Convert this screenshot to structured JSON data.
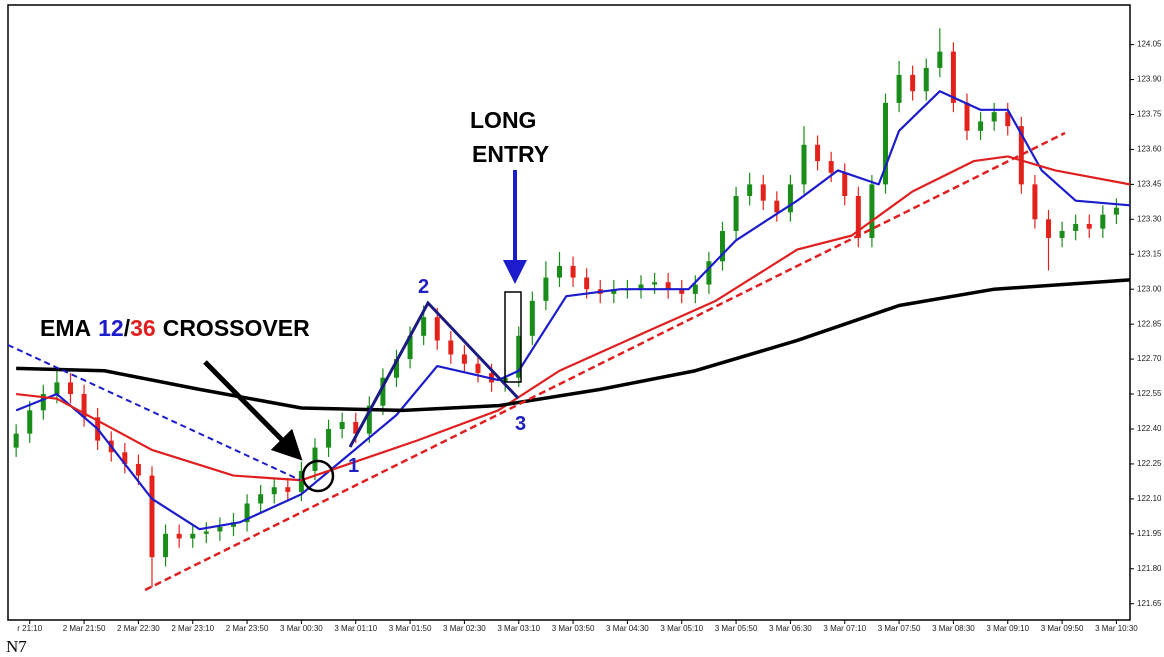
{
  "chart_data": {
    "type": "candlestick",
    "up_color": "#1a8c1a",
    "down_color": "#e3231b",
    "open": [
      122.32,
      122.38,
      122.48,
      122.55,
      122.6,
      122.55,
      122.45,
      122.35,
      122.3,
      122.25,
      122.2,
      121.85,
      121.95,
      121.93,
      121.95,
      121.96,
      121.98,
      122.0,
      122.08,
      122.12,
      122.15,
      122.13,
      122.22,
      122.32,
      122.4,
      122.43,
      122.38,
      122.5,
      122.62,
      122.7,
      122.8,
      122.88,
      122.78,
      122.72,
      122.68,
      122.64,
      122.6,
      122.62,
      122.8,
      122.95,
      123.05,
      123.1,
      123.05,
      123.0,
      122.98,
      123.0,
      123.0,
      123.02,
      123.03,
      123.0,
      122.98,
      123.02,
      123.12,
      123.25,
      123.4,
      123.45,
      123.38,
      123.33,
      123.45,
      123.62,
      123.55,
      123.5,
      123.4,
      123.22,
      123.45,
      123.8,
      123.92,
      123.85,
      123.95,
      124.02,
      123.8,
      123.68,
      123.72,
      123.76,
      123.7,
      123.45,
      123.3,
      123.22,
      123.25,
      123.28,
      123.26,
      123.32
    ],
    "high": [
      122.42,
      122.52,
      122.59,
      122.66,
      122.64,
      122.59,
      122.49,
      122.39,
      122.34,
      122.29,
      122.24,
      121.99,
      121.99,
      121.99,
      122.0,
      122.02,
      122.04,
      122.12,
      122.16,
      122.19,
      122.19,
      122.26,
      122.36,
      122.44,
      122.47,
      122.47,
      122.54,
      122.66,
      122.74,
      122.84,
      122.93,
      122.92,
      122.82,
      122.76,
      122.72,
      122.68,
      122.66,
      122.84,
      122.99,
      123.12,
      123.16,
      123.14,
      123.09,
      123.04,
      123.04,
      123.04,
      123.06,
      123.07,
      123.07,
      123.04,
      123.06,
      123.16,
      123.29,
      123.44,
      123.5,
      123.49,
      123.42,
      123.49,
      123.7,
      123.66,
      123.59,
      123.54,
      123.44,
      123.49,
      123.84,
      123.98,
      123.96,
      123.99,
      124.12,
      124.06,
      123.84,
      123.76,
      123.8,
      123.8,
      123.74,
      123.49,
      123.34,
      123.29,
      123.32,
      123.32,
      123.36,
      123.39
    ],
    "low": [
      122.28,
      122.34,
      122.44,
      122.51,
      122.51,
      122.41,
      122.31,
      122.26,
      122.21,
      122.16,
      121.72,
      121.81,
      121.89,
      121.89,
      121.91,
      121.92,
      121.94,
      121.96,
      122.04,
      122.08,
      122.09,
      122.09,
      122.18,
      122.28,
      122.36,
      122.34,
      122.34,
      122.46,
      122.58,
      122.66,
      122.76,
      122.74,
      122.68,
      122.64,
      122.6,
      122.56,
      122.56,
      122.58,
      122.76,
      122.91,
      123.01,
      123.01,
      122.96,
      122.94,
      122.94,
      122.96,
      122.96,
      122.98,
      122.96,
      122.94,
      122.94,
      122.98,
      123.08,
      123.21,
      123.36,
      123.34,
      123.29,
      123.29,
      123.41,
      123.51,
      123.46,
      123.36,
      123.18,
      123.18,
      123.41,
      123.76,
      123.81,
      123.81,
      123.91,
      123.76,
      123.64,
      123.64,
      123.68,
      123.66,
      123.41,
      123.26,
      123.08,
      123.18,
      123.21,
      123.22,
      123.22,
      123.28
    ],
    "close": [
      122.38,
      122.48,
      122.55,
      122.6,
      122.55,
      122.45,
      122.35,
      122.3,
      122.25,
      122.2,
      121.85,
      121.95,
      121.93,
      121.95,
      121.96,
      121.98,
      122.0,
      122.08,
      122.12,
      122.15,
      122.13,
      122.22,
      122.32,
      122.4,
      122.43,
      122.38,
      122.5,
      122.62,
      122.7,
      122.8,
      122.88,
      122.78,
      122.72,
      122.68,
      122.64,
      122.6,
      122.62,
      122.8,
      122.95,
      123.05,
      123.1,
      123.05,
      123.0,
      122.98,
      123.0,
      123.0,
      123.02,
      123.03,
      123.0,
      122.98,
      123.02,
      123.12,
      123.25,
      123.4,
      123.45,
      123.38,
      123.33,
      123.45,
      123.62,
      123.55,
      123.5,
      123.4,
      123.22,
      123.45,
      123.8,
      123.92,
      123.85,
      123.95,
      124.02,
      123.8,
      123.68,
      123.72,
      123.76,
      123.7,
      123.45,
      123.3,
      123.22,
      123.25,
      123.28,
      123.26,
      123.32,
      123.35
    ],
    "series": [
      {
        "color": "#1c1ccc",
        "x": [
          0,
          3,
          6,
          10,
          13.5,
          16.5,
          21,
          24.5,
          28,
          31,
          35.5,
          37,
          40.5,
          44.5,
          49.5,
          53,
          57.5,
          60.5,
          63.5,
          65,
          68,
          71,
          73,
          75.5,
          78,
          82
        ],
        "values": [
          122.48,
          122.55,
          122.4,
          122.1,
          121.97,
          122.0,
          122.12,
          122.29,
          122.46,
          122.67,
          122.61,
          122.65,
          122.97,
          123.0,
          123.0,
          123.21,
          123.38,
          123.51,
          123.45,
          123.68,
          123.85,
          123.77,
          123.77,
          123.51,
          123.38,
          123.36
        ]
      },
      {
        "color": "#e02020",
        "x": [
          0,
          3,
          10,
          16,
          21,
          24.5,
          29.5,
          35.5,
          40,
          46.5,
          51.5,
          57.5,
          61.5,
          66,
          70.5,
          73,
          76.5,
          82
        ],
        "values": [
          122.55,
          122.53,
          122.31,
          122.2,
          122.18,
          122.25,
          122.35,
          122.48,
          122.65,
          122.82,
          122.95,
          123.17,
          123.23,
          123.42,
          123.55,
          123.57,
          123.51,
          123.45
        ]
      },
      {
        "color": "#000000",
        "x": [
          0,
          6.5,
          13.5,
          21,
          28.5,
          35.5,
          43,
          50,
          57.5,
          65,
          72,
          82
        ],
        "values": [
          122.66,
          122.65,
          122.57,
          122.49,
          122.48,
          122.5,
          122.57,
          122.65,
          122.78,
          122.93,
          123.0,
          123.04
        ]
      }
    ],
    "xlim": [
      -0.6,
      82
    ],
    "ylim": [
      121.58,
      124.22
    ],
    "yticks": [
      {
        "value": 121.65,
        "label": "121.65"
      },
      {
        "value": 121.8,
        "label": "121.80"
      },
      {
        "value": 121.95,
        "label": "121.95"
      },
      {
        "value": 122.1,
        "label": "122.10"
      },
      {
        "value": 122.25,
        "label": "122.25"
      },
      {
        "value": 122.4,
        "label": "122.40"
      },
      {
        "value": 122.55,
        "label": "122.55"
      },
      {
        "value": 122.7,
        "label": "122.70"
      },
      {
        "value": 122.85,
        "label": "122.85"
      },
      {
        "value": 123,
        "label": "123.00"
      },
      {
        "value": 123.15,
        "label": "123.15"
      },
      {
        "value": 123.3,
        "label": "123.30"
      },
      {
        "value": 123.45,
        "label": "123.45"
      },
      {
        "value": 123.6,
        "label": "123.60"
      },
      {
        "value": 123.75,
        "label": "123.75"
      },
      {
        "value": 123.9,
        "label": "123.90"
      },
      {
        "value": 124.05,
        "label": "124.05"
      }
    ],
    "xticks": [
      {
        "value": 1,
        "label": "r 21:10"
      },
      {
        "value": 5,
        "label": "2 Mar 21:50"
      },
      {
        "value": 9,
        "label": "2 Mar 22:30"
      },
      {
        "value": 13,
        "label": "2 Mar 23:10"
      },
      {
        "value": 17,
        "label": "2 Mar 23:50"
      },
      {
        "value": 21,
        "label": "3 Mar 00:30"
      },
      {
        "value": 25,
        "label": "3 Mar 01:10"
      },
      {
        "value": 29,
        "label": "3 Mar 01:50"
      },
      {
        "value": 33,
        "label": "3 Mar 02:30"
      },
      {
        "value": 37,
        "label": "3 Mar 03:10"
      },
      {
        "value": 41,
        "label": "3 Mar 03:50"
      },
      {
        "value": 45,
        "label": "3 Mar 04:30"
      },
      {
        "value": 49,
        "label": "3 Mar 05:10"
      },
      {
        "value": 53,
        "label": "3 Mar 05:50"
      },
      {
        "value": 57,
        "label": "3 Mar 06:30"
      },
      {
        "value": 61,
        "label": "3 Mar 07:10"
      },
      {
        "value": 65,
        "label": "3 Mar 07:50"
      },
      {
        "value": 69,
        "label": "3 Mar 08:30"
      },
      {
        "value": 73,
        "label": "3 Mar 09:10"
      },
      {
        "value": 77,
        "label": "3 Mar 09:50"
      },
      {
        "value": 81,
        "label": "3 Mar 10:30"
      }
    ],
    "annotations": {
      "long_entry": [
        "LONG",
        "ENTRY"
      ],
      "crossover": [
        "EMA",
        "12",
        "/",
        "36",
        "CROSSOVER"
      ],
      "points": [
        "1",
        "2",
        "3"
      ]
    }
  },
  "caption": "N7"
}
